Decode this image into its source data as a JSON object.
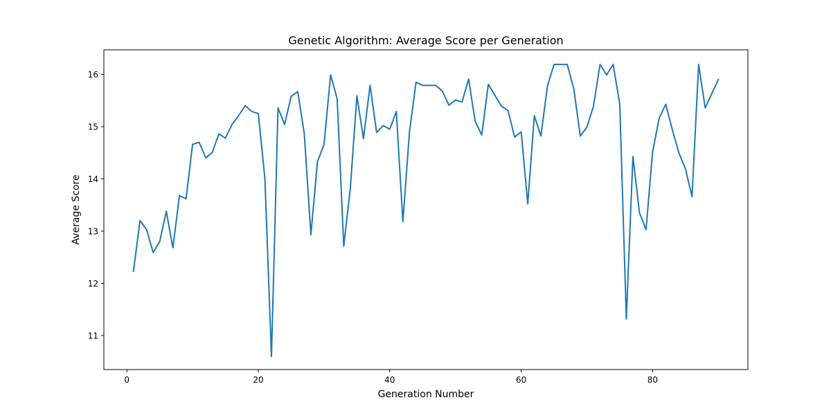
{
  "chart_data": {
    "type": "line",
    "title": "Genetic Algorithm: Average Score per Generation",
    "xlabel": "Generation Number",
    "ylabel": "Average Score",
    "xlim": [
      -3.5,
      94.5
    ],
    "ylim": [
      10.35,
      16.47
    ],
    "xticks": [
      0,
      20,
      40,
      60,
      80
    ],
    "yticks": [
      11,
      12,
      13,
      14,
      15,
      16
    ],
    "grid": false,
    "legend": "none",
    "line_color": "#1f77b4",
    "x": [
      1,
      2,
      3,
      4,
      5,
      6,
      7,
      8,
      9,
      10,
      11,
      12,
      13,
      14,
      15,
      16,
      17,
      18,
      19,
      20,
      21,
      22,
      23,
      24,
      25,
      26,
      27,
      28,
      29,
      30,
      31,
      32,
      33,
      34,
      35,
      36,
      37,
      38,
      39,
      40,
      41,
      42,
      43,
      44,
      45,
      46,
      47,
      48,
      49,
      50,
      51,
      52,
      53,
      54,
      55,
      56,
      57,
      58,
      59,
      60,
      61,
      62,
      63,
      64,
      65,
      66,
      67,
      68,
      69,
      70,
      71,
      72,
      73,
      74,
      75,
      76,
      77,
      78,
      79,
      80,
      81,
      82,
      83,
      84,
      85,
      86,
      87,
      88,
      89,
      90
    ],
    "series": [
      {
        "values": [
          12.23,
          13.2,
          13.03,
          12.59,
          12.8,
          13.38,
          12.68,
          13.68,
          13.62,
          14.66,
          14.7,
          14.4,
          14.51,
          14.86,
          14.78,
          15.04,
          15.21,
          15.4,
          15.29,
          15.25,
          14.01,
          10.6,
          15.36,
          15.04,
          15.58,
          15.67,
          14.86,
          12.93,
          14.33,
          14.66,
          15.99,
          15.53,
          12.71,
          13.82,
          15.59,
          14.77,
          15.79,
          14.89,
          15.02,
          14.95,
          15.29,
          13.18,
          14.9,
          15.85,
          15.79,
          15.79,
          15.79,
          15.68,
          15.41,
          15.51,
          15.47,
          15.91,
          15.1,
          14.84,
          15.81,
          15.6,
          15.39,
          15.31,
          14.8,
          14.9,
          13.52,
          15.21,
          14.82,
          15.78,
          16.19,
          16.19,
          16.19,
          15.73,
          14.82,
          14.99,
          15.39,
          16.19,
          15.99,
          16.19,
          15.43,
          11.32,
          14.43,
          13.35,
          13.03,
          14.52,
          15.16,
          15.43,
          14.94,
          14.5,
          14.19,
          13.66,
          16.19,
          15.36,
          15.63,
          15.9
        ]
      }
    ]
  }
}
